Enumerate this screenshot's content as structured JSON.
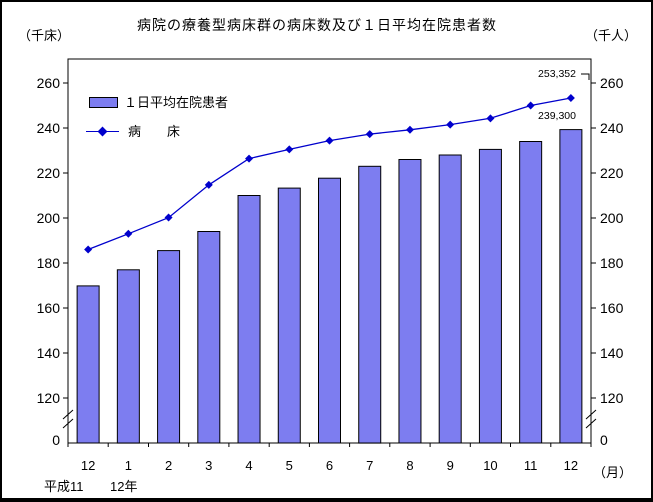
{
  "page": {
    "title": "病院の療養型病床群の病床数及び１日平均在院患者数",
    "left_axis_unit": "（千床）",
    "right_axis_unit": "（千人）",
    "month_unit": "（月）"
  },
  "legend": {
    "bar_label": "１日平均在院患者",
    "line_label": "病　　床"
  },
  "annotations": {
    "beds_last": "253,352",
    "patients_last": "239,300"
  },
  "era_labels": {
    "first": "平成11",
    "second": "12年"
  },
  "chart_data": {
    "type": "bar+line",
    "title": "病院の療養型病床群の病床数及び１日平均在院患者数",
    "value_scale": "thousands",
    "categories": [
      "12",
      "1",
      "2",
      "3",
      "4",
      "5",
      "6",
      "7",
      "8",
      "9",
      "10",
      "11",
      "12"
    ],
    "series": [
      {
        "name": "１日平均在院患者",
        "type": "bar",
        "axis": "right（千人）",
        "values": [
          169.8,
          177.0,
          185.5,
          194.0,
          210.0,
          213.3,
          217.7,
          223.0,
          226.0,
          228.0,
          230.5,
          234.0,
          239.3
        ],
        "last_value_exact": "239,300"
      },
      {
        "name": "病床",
        "type": "line",
        "axis": "left（千床）",
        "values": [
          186.0,
          193.0,
          200.2,
          214.7,
          226.4,
          230.5,
          234.4,
          237.3,
          239.2,
          241.5,
          244.3,
          250.0,
          253.352
        ],
        "last_value_exact": "253,352"
      }
    ],
    "yticks": [
      0,
      120,
      140,
      160,
      180,
      200,
      220,
      240,
      260
    ],
    "axis_break_between": [
      0,
      120
    ],
    "ylim_linear": [
      120,
      270
    ],
    "grid": false,
    "legend_position": "top-left-inside",
    "colors": {
      "bar_fill": "#7D7DF0",
      "bar_stroke": "#000000",
      "line": "#0000CC",
      "marker": "#0000CC",
      "axis": "#000000"
    }
  }
}
